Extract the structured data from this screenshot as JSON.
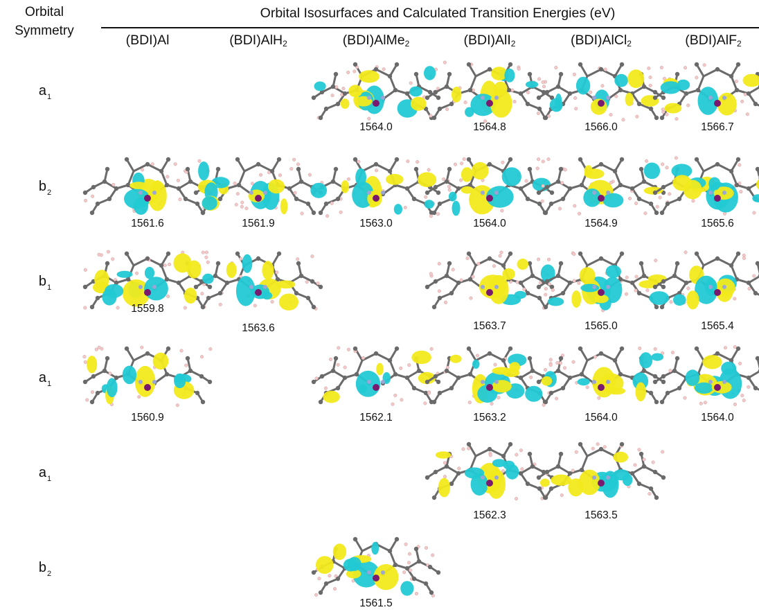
{
  "header": {
    "orbital_symmetry_line1": "Orbital",
    "orbital_symmetry_line2": "Symmetry",
    "title": "Orbital Isosurfaces and Calculated Transition Energies (eV)"
  },
  "columns": [
    {
      "base": "(BDI)Al",
      "sub": ""
    },
    {
      "base": "(BDI)AlH",
      "sub": "2"
    },
    {
      "base": "(BDI)AlMe",
      "sub": "2"
    },
    {
      "base": "(BDI)AlI",
      "sub": "2"
    },
    {
      "base": "(BDI)AlCl",
      "sub": "2"
    },
    {
      "base": "(BDI)AlF",
      "sub": "2"
    }
  ],
  "rows": [
    {
      "symbol": "a",
      "sub": "1",
      "energies": [
        "",
        "",
        "1564.0",
        "1564.8",
        "1566.0",
        "1566.7"
      ]
    },
    {
      "symbol": "b",
      "sub": "2",
      "energies": [
        "1561.6",
        "1561.9",
        "1563.0",
        "1564.0",
        "1564.9",
        "1565.6"
      ]
    },
    {
      "symbol": "b",
      "sub": "1",
      "energies": [
        "1559.8",
        "1563.6",
        "",
        "1563.7",
        "1565.0",
        "1565.4"
      ]
    },
    {
      "symbol": "a",
      "sub": "1",
      "energies": [
        "1560.9",
        "",
        "1562.1",
        "1563.2",
        "1564.0",
        "1564.0"
      ]
    },
    {
      "symbol": "a",
      "sub": "1",
      "energies": [
        "",
        "",
        "",
        "1562.3",
        "1563.5",
        ""
      ]
    },
    {
      "symbol": "b",
      "sub": "2",
      "energies": [
        "",
        "",
        "1561.5",
        "",
        "",
        ""
      ]
    }
  ],
  "colors": {
    "positive_lobe": "#f2ea1c",
    "negative_lobe": "#22c9d4",
    "carbon": "#6a6a6a",
    "hydrogen": "#f4c8c8",
    "aluminum": "#7a1a6e",
    "nitrogen": "#9aa6d6"
  }
}
